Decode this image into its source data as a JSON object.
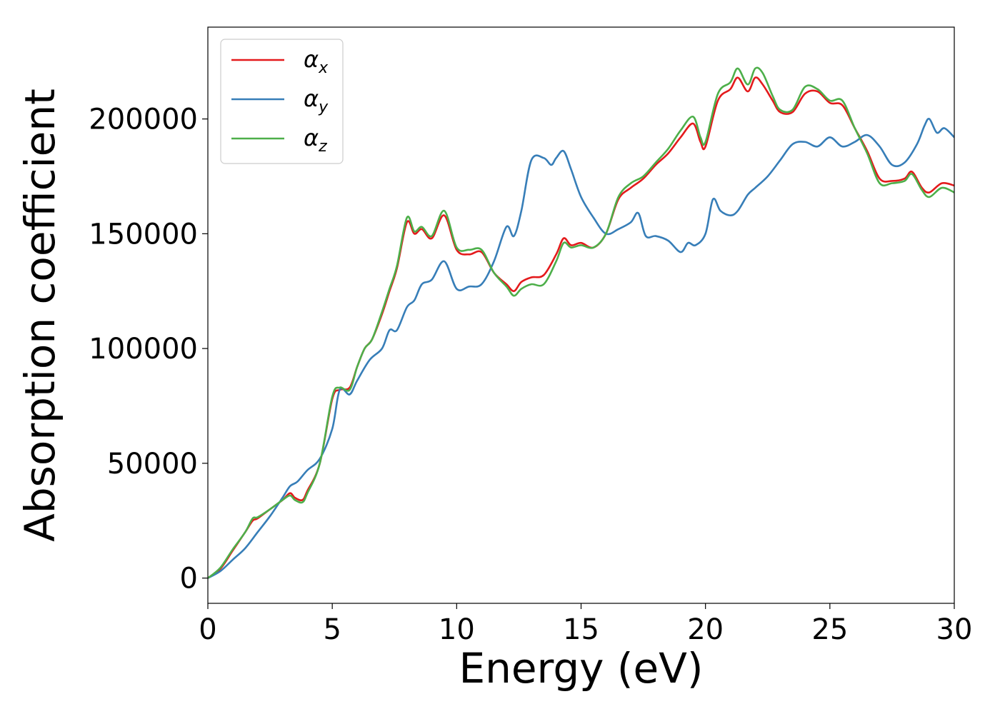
{
  "chart_data": {
    "type": "line",
    "title": "",
    "xlabel": "Energy (eV)",
    "ylabel": "Absorption coefficient",
    "xlim": [
      0,
      30
    ],
    "ylim": [
      -11000,
      240000
    ],
    "xticks": [
      0,
      5,
      10,
      15,
      20,
      25,
      30
    ],
    "xtick_labels": [
      "0",
      "5",
      "10",
      "15",
      "20",
      "25",
      "30"
    ],
    "yticks": [
      0,
      50000,
      100000,
      150000,
      200000
    ],
    "ytick_labels": [
      "0",
      "50000",
      "100000",
      "150000",
      "200000"
    ],
    "grid": false,
    "legend_position": "top-left",
    "series": [
      {
        "name": "α",
        "subscript": "x",
        "color": "#e41a1c",
        "x": [
          0,
          0.5,
          1,
          1.5,
          1.8,
          2,
          2.5,
          3,
          3.3,
          3.5,
          3.8,
          4,
          4.5,
          5,
          5.3,
          5.7,
          6,
          6.3,
          6.6,
          7,
          7.3,
          7.6,
          8,
          8.3,
          8.6,
          9,
          9.5,
          10,
          10.5,
          11,
          11.5,
          12,
          12.3,
          12.6,
          13,
          13.5,
          14,
          14.3,
          14.6,
          15,
          15.5,
          16,
          16.5,
          17,
          17.5,
          18,
          18.5,
          19,
          19.5,
          19.8,
          20,
          20.5,
          21,
          21.3,
          21.7,
          22,
          22.3,
          22.7,
          23,
          23.5,
          24,
          24.5,
          25,
          25.5,
          26,
          26.5,
          27,
          27.5,
          28,
          28.3,
          28.7,
          29,
          29.5,
          30
        ],
        "y": [
          0,
          4000,
          12000,
          20000,
          25000,
          26000,
          30000,
          34000,
          37000,
          35000,
          34000,
          38000,
          50000,
          78000,
          82000,
          83000,
          92000,
          100000,
          104000,
          115000,
          125000,
          135000,
          155000,
          150000,
          152000,
          148000,
          158000,
          143000,
          141000,
          142000,
          133000,
          128000,
          125000,
          129000,
          131000,
          132000,
          141000,
          148000,
          145000,
          146000,
          144000,
          150000,
          165000,
          170000,
          174000,
          180000,
          185000,
          192000,
          198000,
          190000,
          188000,
          208000,
          213000,
          218000,
          212000,
          218000,
          215000,
          208000,
          203000,
          203000,
          211000,
          212000,
          207000,
          206000,
          196000,
          186000,
          174000,
          173000,
          174000,
          177000,
          170000,
          168000,
          172000,
          171000
        ]
      },
      {
        "name": "α",
        "subscript": "y",
        "color": "#377eb8",
        "x": [
          0,
          0.5,
          1,
          1.5,
          2,
          2.5,
          3,
          3.3,
          3.6,
          4,
          4.5,
          5,
          5.3,
          5.7,
          6,
          6.5,
          7,
          7.3,
          7.6,
          8,
          8.3,
          8.6,
          9,
          9.5,
          10,
          10.5,
          11,
          11.5,
          12,
          12.3,
          12.6,
          13,
          13.5,
          13.8,
          14,
          14.3,
          14.6,
          15,
          15.5,
          16,
          16.5,
          17,
          17.3,
          17.6,
          18,
          18.5,
          19,
          19.3,
          19.6,
          20,
          20.3,
          20.6,
          21,
          21.3,
          21.7,
          22,
          22.5,
          23,
          23.5,
          24,
          24.5,
          25,
          25.5,
          26,
          26.5,
          27,
          27.5,
          28,
          28.5,
          28.8,
          29,
          29.3,
          29.6,
          30
        ],
        "y": [
          0,
          3000,
          8000,
          13000,
          20000,
          27000,
          35000,
          40000,
          42000,
          47000,
          52000,
          65000,
          82000,
          80000,
          86000,
          95000,
          100000,
          108000,
          108000,
          118000,
          121000,
          128000,
          130000,
          138000,
          126000,
          127000,
          128000,
          138000,
          153000,
          149000,
          160000,
          182000,
          183000,
          180000,
          183000,
          186000,
          178000,
          166000,
          157000,
          150000,
          152000,
          155000,
          159000,
          149000,
          149000,
          147000,
          142000,
          146000,
          145000,
          150000,
          165000,
          160000,
          158000,
          160000,
          167000,
          170000,
          175000,
          182000,
          189000,
          190000,
          188000,
          192000,
          188000,
          190000,
          193000,
          188000,
          180000,
          181000,
          189000,
          197000,
          200000,
          194000,
          196000,
          192000
        ]
      },
      {
        "name": "α",
        "subscript": "z",
        "color": "#4daf4a",
        "x": [
          0,
          0.5,
          1,
          1.5,
          1.8,
          2,
          2.5,
          3,
          3.3,
          3.5,
          3.8,
          4,
          4.5,
          5,
          5.3,
          5.7,
          6,
          6.3,
          6.6,
          7,
          7.3,
          7.6,
          8,
          8.3,
          8.6,
          9,
          9.5,
          10,
          10.5,
          11,
          11.5,
          12,
          12.3,
          12.6,
          13,
          13.5,
          14,
          14.3,
          14.6,
          15,
          15.5,
          16,
          16.5,
          17,
          17.5,
          18,
          18.5,
          19,
          19.5,
          19.8,
          20,
          20.5,
          21,
          21.3,
          21.7,
          22,
          22.3,
          22.7,
          23,
          23.5,
          24,
          24.5,
          25,
          25.5,
          26,
          26.5,
          27,
          27.5,
          28,
          28.3,
          28.7,
          29,
          29.5,
          30
        ],
        "y": [
          0,
          4500,
          12500,
          20000,
          26000,
          26500,
          30000,
          34000,
          36000,
          34000,
          33000,
          37000,
          50000,
          79000,
          83000,
          82000,
          92000,
          100000,
          104000,
          116000,
          126000,
          136000,
          157000,
          151000,
          153000,
          149000,
          160000,
          144000,
          143000,
          143000,
          133000,
          127000,
          123000,
          126000,
          128000,
          128000,
          138000,
          146000,
          144000,
          145000,
          144000,
          150000,
          166000,
          172000,
          175000,
          181000,
          187000,
          195000,
          201000,
          192000,
          190000,
          211000,
          216000,
          222000,
          215000,
          222000,
          220000,
          210000,
          204000,
          204000,
          214000,
          213000,
          208000,
          208000,
          196000,
          185000,
          172000,
          172000,
          173000,
          176000,
          169000,
          166000,
          170000,
          168000
        ]
      }
    ]
  }
}
